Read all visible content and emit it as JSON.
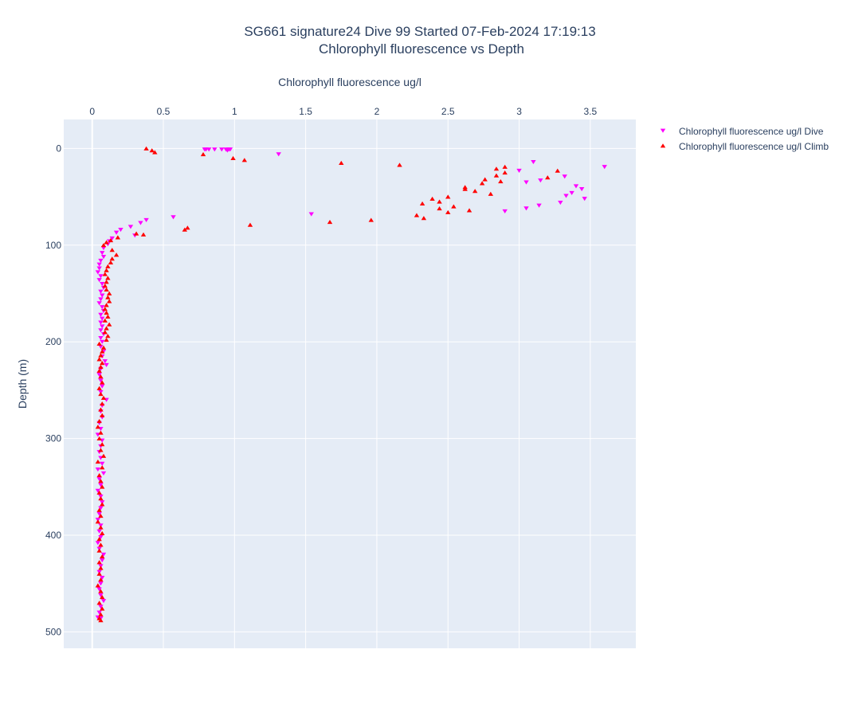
{
  "chart_data": {
    "type": "scatter",
    "title_lines": [
      "SG661 signature24 Dive 99 Started 07-Feb-2024 17:19:13",
      "Chlorophyll fluorescence vs Depth"
    ],
    "xlabel": "Chlorophyll fluorescence ug/l",
    "ylabel": "Depth (m)",
    "x_axis_side": "top",
    "y_axis_reversed": true,
    "xlim": [
      -0.2,
      3.82
    ],
    "ylim": [
      517,
      -30
    ],
    "x_ticks": [
      0,
      0.5,
      1,
      1.5,
      2,
      2.5,
      3,
      3.5
    ],
    "x_tick_labels": [
      "0",
      "0.5",
      "1",
      "1.5",
      "2",
      "2.5",
      "3",
      "3.5"
    ],
    "y_ticks": [
      0,
      100,
      200,
      300,
      400,
      500
    ],
    "y_tick_labels": [
      "0",
      "100",
      "200",
      "300",
      "400",
      "500"
    ],
    "grid": true,
    "plot_background": "#e5ecf6",
    "legend_position": "top-right",
    "series": [
      {
        "name": "Chlorophyll fluorescence ug/l Dive",
        "marker": "triangle-down",
        "color": "#ff00ff",
        "points": [
          [
            0.79,
            1
          ],
          [
            0.8,
            1
          ],
          [
            0.82,
            1
          ],
          [
            0.86,
            1
          ],
          [
            0.91,
            1
          ],
          [
            0.94,
            1
          ],
          [
            0.95,
            2
          ],
          [
            0.96,
            1
          ],
          [
            0.97,
            1
          ],
          [
            1.31,
            6
          ],
          [
            3.1,
            14
          ],
          [
            3.6,
            19
          ],
          [
            3.0,
            23
          ],
          [
            3.15,
            33
          ],
          [
            3.32,
            29
          ],
          [
            3.05,
            35
          ],
          [
            3.4,
            39
          ],
          [
            3.44,
            42
          ],
          [
            3.37,
            46
          ],
          [
            3.33,
            49
          ],
          [
            3.46,
            52
          ],
          [
            3.29,
            56
          ],
          [
            3.14,
            59
          ],
          [
            3.05,
            62
          ],
          [
            2.9,
            65
          ],
          [
            1.54,
            68
          ],
          [
            0.57,
            71
          ],
          [
            0.38,
            74
          ],
          [
            0.34,
            77
          ],
          [
            0.27,
            81
          ],
          [
            0.2,
            84
          ],
          [
            0.17,
            87
          ],
          [
            0.3,
            90
          ],
          [
            0.14,
            93
          ],
          [
            0.12,
            96
          ],
          [
            0.11,
            99
          ],
          [
            0.08,
            103
          ],
          [
            0.07,
            108
          ],
          [
            0.08,
            112
          ],
          [
            0.06,
            116
          ],
          [
            0.05,
            120
          ],
          [
            0.05,
            124
          ],
          [
            0.04,
            128
          ],
          [
            0.06,
            132
          ],
          [
            0.05,
            136
          ],
          [
            0.07,
            140
          ],
          [
            0.08,
            144
          ],
          [
            0.06,
            148
          ],
          [
            0.07,
            152
          ],
          [
            0.06,
            156
          ],
          [
            0.05,
            160
          ],
          [
            0.07,
            164
          ],
          [
            0.08,
            168
          ],
          [
            0.06,
            172
          ],
          [
            0.07,
            176
          ],
          [
            0.06,
            180
          ],
          [
            0.07,
            184
          ],
          [
            0.06,
            188
          ],
          [
            0.08,
            192
          ],
          [
            0.06,
            196
          ],
          [
            0.07,
            200
          ],
          [
            0.06,
            205
          ],
          [
            0.08,
            210
          ],
          [
            0.07,
            215
          ],
          [
            0.09,
            220
          ],
          [
            0.1,
            224
          ],
          [
            0.06,
            228
          ],
          [
            0.05,
            234
          ],
          [
            0.06,
            240
          ],
          [
            0.07,
            246
          ],
          [
            0.06,
            252
          ],
          [
            0.1,
            260
          ],
          [
            0.07,
            266
          ],
          [
            0.06,
            272
          ],
          [
            0.07,
            278
          ],
          [
            0.05,
            284
          ],
          [
            0.06,
            290
          ],
          [
            0.04,
            296
          ],
          [
            0.07,
            302
          ],
          [
            0.06,
            308
          ],
          [
            0.05,
            314
          ],
          [
            0.06,
            320
          ],
          [
            0.07,
            326
          ],
          [
            0.04,
            332
          ],
          [
            0.08,
            336
          ],
          [
            0.05,
            342
          ],
          [
            0.06,
            348
          ],
          [
            0.04,
            354
          ],
          [
            0.06,
            360
          ],
          [
            0.07,
            366
          ],
          [
            0.06,
            372
          ],
          [
            0.05,
            378
          ],
          [
            0.04,
            384
          ],
          [
            0.06,
            390
          ],
          [
            0.05,
            396
          ],
          [
            0.06,
            402
          ],
          [
            0.04,
            408
          ],
          [
            0.05,
            414
          ],
          [
            0.08,
            420
          ],
          [
            0.07,
            426
          ],
          [
            0.06,
            432
          ],
          [
            0.05,
            438
          ],
          [
            0.07,
            444
          ],
          [
            0.06,
            450
          ],
          [
            0.05,
            456
          ],
          [
            0.06,
            462
          ],
          [
            0.08,
            468
          ],
          [
            0.06,
            474
          ],
          [
            0.05,
            480
          ],
          [
            0.04,
            485
          ],
          [
            0.06,
            486
          ]
        ]
      },
      {
        "name": "Chlorophyll fluorescence ug/l Climb",
        "marker": "triangle-up",
        "color": "#ff0000",
        "points": [
          [
            0.38,
            0
          ],
          [
            0.42,
            2
          ],
          [
            0.44,
            4
          ],
          [
            0.78,
            6
          ],
          [
            0.99,
            10
          ],
          [
            1.07,
            12
          ],
          [
            1.75,
            15
          ],
          [
            2.16,
            17
          ],
          [
            2.9,
            19
          ],
          [
            2.84,
            21
          ],
          [
            2.9,
            25
          ],
          [
            2.84,
            28
          ],
          [
            3.27,
            23
          ],
          [
            3.2,
            30
          ],
          [
            2.76,
            32
          ],
          [
            2.87,
            34
          ],
          [
            2.74,
            36
          ],
          [
            2.62,
            40
          ],
          [
            2.62,
            42
          ],
          [
            2.69,
            44
          ],
          [
            2.8,
            47
          ],
          [
            2.5,
            50
          ],
          [
            2.39,
            52
          ],
          [
            2.44,
            55
          ],
          [
            2.32,
            57
          ],
          [
            2.54,
            60
          ],
          [
            2.44,
            62
          ],
          [
            2.65,
            64
          ],
          [
            2.5,
            66
          ],
          [
            2.28,
            69
          ],
          [
            2.33,
            72
          ],
          [
            1.96,
            74
          ],
          [
            1.67,
            76
          ],
          [
            1.11,
            79
          ],
          [
            0.67,
            82
          ],
          [
            0.65,
            84
          ],
          [
            0.36,
            89
          ],
          [
            0.31,
            88
          ],
          [
            0.18,
            92
          ],
          [
            0.13,
            95
          ],
          [
            0.1,
            97
          ],
          [
            0.08,
            100
          ],
          [
            0.14,
            105
          ],
          [
            0.17,
            110
          ],
          [
            0.14,
            114
          ],
          [
            0.13,
            118
          ],
          [
            0.11,
            122
          ],
          [
            0.1,
            126
          ],
          [
            0.09,
            130
          ],
          [
            0.11,
            134
          ],
          [
            0.1,
            138
          ],
          [
            0.09,
            142
          ],
          [
            0.1,
            146
          ],
          [
            0.12,
            150
          ],
          [
            0.11,
            154
          ],
          [
            0.12,
            158
          ],
          [
            0.1,
            162
          ],
          [
            0.09,
            166
          ],
          [
            0.1,
            170
          ],
          [
            0.11,
            174
          ],
          [
            0.09,
            178
          ],
          [
            0.12,
            182
          ],
          [
            0.1,
            186
          ],
          [
            0.09,
            190
          ],
          [
            0.11,
            194
          ],
          [
            0.1,
            198
          ],
          [
            0.05,
            202
          ],
          [
            0.08,
            206
          ],
          [
            0.07,
            210
          ],
          [
            0.06,
            214
          ],
          [
            0.05,
            218
          ],
          [
            0.07,
            222
          ],
          [
            0.06,
            226
          ],
          [
            0.05,
            230
          ],
          [
            0.06,
            236
          ],
          [
            0.07,
            242
          ],
          [
            0.05,
            248
          ],
          [
            0.06,
            254
          ],
          [
            0.08,
            258
          ],
          [
            0.07,
            264
          ],
          [
            0.06,
            270
          ],
          [
            0.07,
            276
          ],
          [
            0.05,
            282
          ],
          [
            0.04,
            288
          ],
          [
            0.06,
            294
          ],
          [
            0.05,
            300
          ],
          [
            0.07,
            306
          ],
          [
            0.06,
            312
          ],
          [
            0.08,
            318
          ],
          [
            0.04,
            324
          ],
          [
            0.07,
            330
          ],
          [
            0.05,
            338
          ],
          [
            0.06,
            344
          ],
          [
            0.07,
            350
          ],
          [
            0.05,
            356
          ],
          [
            0.06,
            362
          ],
          [
            0.07,
            368
          ],
          [
            0.05,
            374
          ],
          [
            0.06,
            380
          ],
          [
            0.04,
            386
          ],
          [
            0.06,
            392
          ],
          [
            0.07,
            398
          ],
          [
            0.05,
            404
          ],
          [
            0.06,
            410
          ],
          [
            0.05,
            416
          ],
          [
            0.07,
            422
          ],
          [
            0.05,
            428
          ],
          [
            0.06,
            434
          ],
          [
            0.05,
            440
          ],
          [
            0.06,
            446
          ],
          [
            0.04,
            452
          ],
          [
            0.06,
            458
          ],
          [
            0.07,
            464
          ],
          [
            0.05,
            470
          ],
          [
            0.07,
            476
          ],
          [
            0.06,
            482
          ],
          [
            0.05,
            486
          ],
          [
            0.06,
            488
          ]
        ]
      }
    ]
  }
}
